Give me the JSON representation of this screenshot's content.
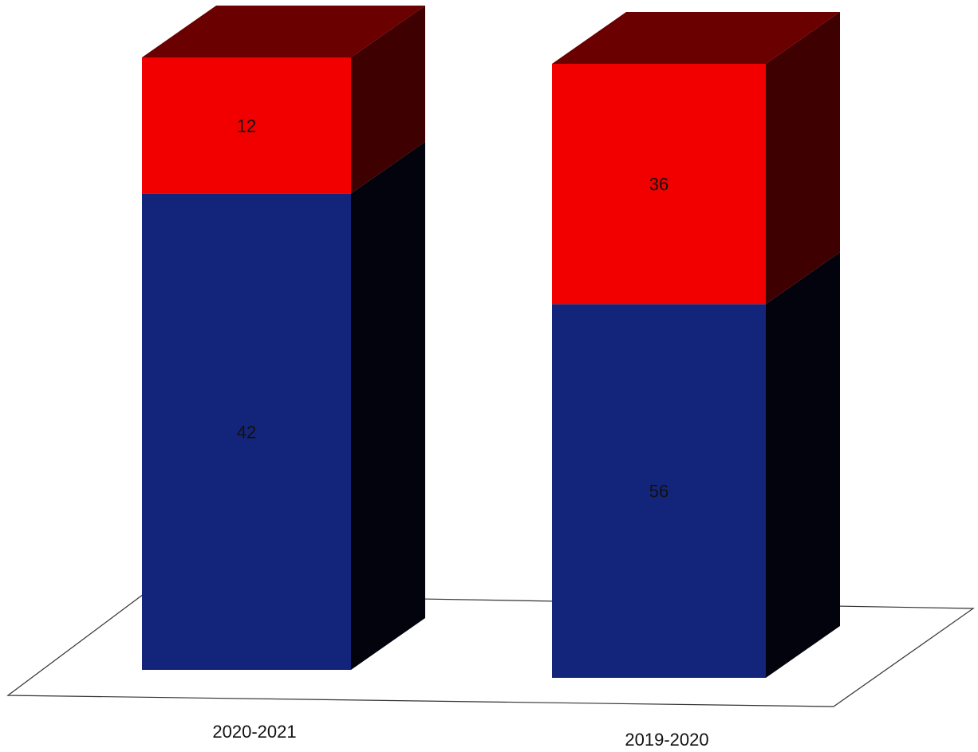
{
  "chart_data": {
    "type": "bar",
    "stacked": true,
    "style": "3d",
    "categories": [
      "2020-2021",
      "2019-2020"
    ],
    "series": [
      {
        "values": [
          42,
          56
        ],
        "color": "#13257a",
        "side_color": "#02030d"
      },
      {
        "values": [
          12,
          36
        ],
        "color": "#f20000",
        "side_color": "#3e0000"
      }
    ],
    "data_labels": [
      [
        "42",
        "56"
      ],
      [
        "12",
        "36"
      ]
    ],
    "grid": false,
    "legend": "none"
  }
}
